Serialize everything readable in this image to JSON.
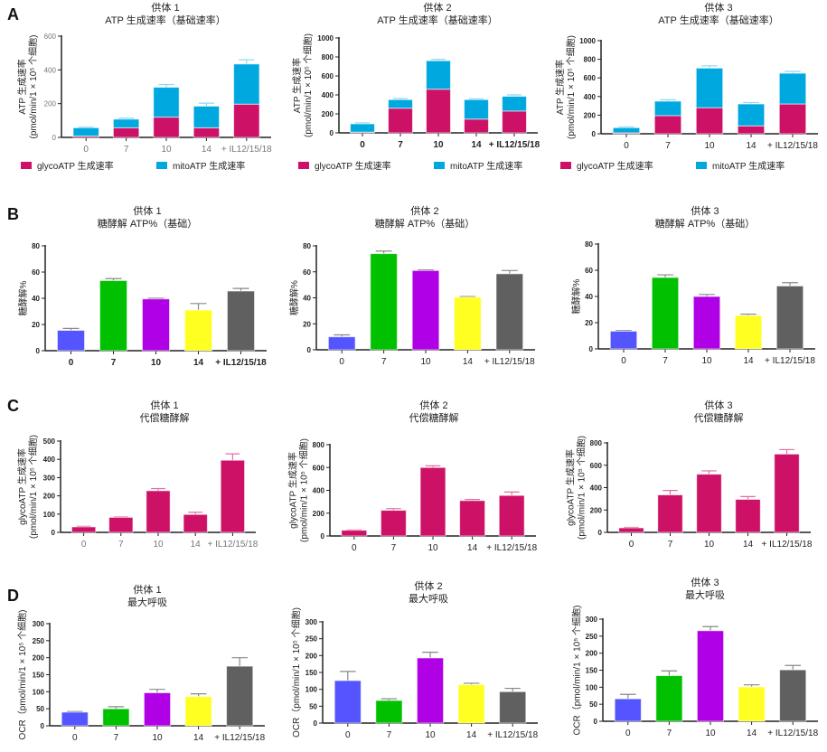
{
  "panels": [
    "A",
    "B",
    "C",
    "D"
  ],
  "colors": {
    "glyco": "#cc1166",
    "mito": "#00a8e0",
    "day0": "#5555ff",
    "day7": "#00c000",
    "day10": "#b000e6",
    "day14": "#ffff22",
    "il": "#606060",
    "axis": "#222222"
  },
  "chart_data": [
    {
      "panel": "A",
      "type": "bar",
      "stacked": true,
      "title": [
        "供体 1",
        "ATP 生成速率（基础速率）"
      ],
      "ylabel": [
        "ATP 生成速率",
        "(pmol/min/1 × 10⁵ 个细胞)"
      ],
      "categories": [
        "0",
        "7",
        "10",
        "14",
        "+ IL12/15/18"
      ],
      "ylim": [
        0,
        600
      ],
      "yticks": [
        0,
        200,
        400,
        600
      ],
      "series": [
        {
          "name": "glycoATP 生成速率",
          "values": [
            8,
            57,
            120,
            57,
            197
          ],
          "errors": [
            3,
            4,
            6,
            15,
            12
          ]
        },
        {
          "name": "mitoATP 生成速率",
          "values": [
            49,
            51,
            177,
            128,
            238
          ],
          "errors": [
            4,
            6,
            16,
            18,
            25
          ]
        }
      ],
      "legend": "bottom"
    },
    {
      "panel": "A",
      "type": "bar",
      "stacked": true,
      "title": [
        "供体 2",
        "ATP 生成速率（基础速率）"
      ],
      "ylabel": [
        "ATP 生成速率",
        "(pmol/min/1 × 10⁵ 个细胞)"
      ],
      "categories": [
        "0",
        "7",
        "10",
        "14",
        "+ IL12/15/18"
      ],
      "ylim": [
        0,
        1000
      ],
      "yticks": [
        0,
        200,
        400,
        600,
        800,
        1000
      ],
      "series": [
        {
          "name": "glycoATP 生成速率",
          "values": [
            8,
            260,
            460,
            145,
            230
          ],
          "errors": [
            3,
            8,
            15,
            5,
            6
          ]
        },
        {
          "name": "mitoATP 生成速率",
          "values": [
            87,
            90,
            300,
            205,
            155
          ],
          "errors": [
            10,
            12,
            15,
            8,
            15
          ]
        }
      ],
      "legend": "bottom"
    },
    {
      "panel": "A",
      "type": "bar",
      "stacked": true,
      "title": [
        "供体 3",
        "ATP 生成速率（基础速率）"
      ],
      "ylabel": [
        "ATP 生成速率",
        "(pmol/min/1 × 10⁵ 个细胞)"
      ],
      "categories": [
        "0",
        "7",
        "10",
        "14",
        "+ IL12/15/18"
      ],
      "ylim": [
        0,
        1000
      ],
      "yticks": [
        0,
        200,
        400,
        600,
        800,
        1000
      ],
      "series": [
        {
          "name": "glycoATP 生成速率",
          "values": [
            10,
            195,
            280,
            85,
            320
          ],
          "errors": [
            3,
            20,
            20,
            6,
            12
          ]
        },
        {
          "name": "mitoATP 生成速率",
          "values": [
            55,
            155,
            425,
            235,
            330
          ],
          "errors": [
            8,
            15,
            25,
            15,
            20
          ]
        }
      ],
      "legend": "bottom"
    },
    {
      "panel": "B",
      "type": "bar",
      "title": [
        "供体 1",
        "糖酵解 ATP%（基础）"
      ],
      "ylabel": [
        "糖酵解%"
      ],
      "categories": [
        "0",
        "7",
        "10",
        "14",
        "+ IL12/15/18"
      ],
      "ylim": [
        0,
        80
      ],
      "yticks": [
        0,
        20,
        40,
        60,
        80
      ],
      "series": [
        {
          "values": [
            15.5,
            53.5,
            39.5,
            31,
            45.5
          ],
          "errors": [
            1.5,
            1.5,
            0.5,
            5,
            2
          ]
        }
      ]
    },
    {
      "panel": "B",
      "type": "bar",
      "title": [
        "供体 2",
        "糖酵解 ATP%（基础）"
      ],
      "ylabel": [
        "糖酵解%"
      ],
      "categories": [
        "0",
        "7",
        "10",
        "14",
        "+ IL12/15/18"
      ],
      "ylim": [
        0,
        80
      ],
      "yticks": [
        0,
        20,
        40,
        60,
        80
      ],
      "series": [
        {
          "values": [
            10,
            74,
            61,
            40.5,
            58.5
          ],
          "errors": [
            1.5,
            2,
            0.5,
            0.5,
            2.5
          ]
        }
      ]
    },
    {
      "panel": "B",
      "type": "bar",
      "title": [
        "供体 3",
        "糖酵解 ATP%（基础）"
      ],
      "ylabel": [
        "糖酵解%"
      ],
      "categories": [
        "0",
        "7",
        "10",
        "14",
        "+ IL12/15/18"
      ],
      "ylim": [
        0,
        80
      ],
      "yticks": [
        0,
        20,
        40,
        60,
        80
      ],
      "series": [
        {
          "values": [
            13.5,
            54.5,
            40,
            25.5,
            48
          ],
          "errors": [
            0.5,
            2,
            1.5,
            1,
            2.5
          ]
        }
      ]
    },
    {
      "panel": "C",
      "type": "bar",
      "title": [
        "供体 1",
        "代偿糖酵解"
      ],
      "ylabel": [
        "glycoATP 生成速率",
        "(pmol/min/1 × 10⁵ 个细胞)"
      ],
      "categories": [
        "0",
        "7",
        "10",
        "14",
        "+ IL12/15/18"
      ],
      "ylim": [
        0,
        500
      ],
      "yticks": [
        0,
        100,
        200,
        300,
        400,
        500
      ],
      "series": [
        {
          "values": [
            30,
            82,
            228,
            98,
            395
          ],
          "errors": [
            3,
            2,
            12,
            12,
            35
          ]
        }
      ]
    },
    {
      "panel": "C",
      "type": "bar",
      "title": [
        "供体 2",
        "代偿糖酵解"
      ],
      "ylabel": [
        "glycoATP 生成速率",
        "(pmol/min/1 × 10⁵ 个细胞)"
      ],
      "categories": [
        "0",
        "7",
        "10",
        "14",
        "+ IL12/15/18"
      ],
      "ylim": [
        0,
        800
      ],
      "yticks": [
        0,
        200,
        400,
        600,
        800
      ],
      "series": [
        {
          "values": [
            50,
            225,
            600,
            310,
            355
          ],
          "errors": [
            3,
            15,
            15,
            10,
            30
          ]
        }
      ]
    },
    {
      "panel": "C",
      "type": "bar",
      "title": [
        "供体 3",
        "代偿糖酵解"
      ],
      "ylabel": [
        "glycoATP 生成速率",
        "(pmol/min/1 × 10⁵ 个细胞)"
      ],
      "categories": [
        "0",
        "7",
        "10",
        "14",
        "+ IL12/15/18"
      ],
      "ylim": [
        0,
        800
      ],
      "yticks": [
        0,
        200,
        400,
        600,
        800
      ],
      "series": [
        {
          "values": [
            40,
            335,
            520,
            295,
            700
          ],
          "errors": [
            5,
            40,
            30,
            25,
            40
          ]
        }
      ]
    },
    {
      "panel": "D",
      "type": "bar",
      "title": [
        "供体 1",
        "最大呼吸"
      ],
      "ylabel": [
        "OCR（pmol/min/1 × 10⁵ 个细胞)"
      ],
      "categories": [
        "0",
        "7",
        "10",
        "14",
        "+ IL12/15/18"
      ],
      "ylim": [
        0,
        300
      ],
      "yticks": [
        0,
        50,
        100,
        150,
        200,
        250,
        300
      ],
      "series": [
        {
          "values": [
            40,
            50,
            97,
            86,
            175
          ],
          "errors": [
            2,
            6,
            10,
            8,
            25
          ]
        }
      ]
    },
    {
      "panel": "D",
      "type": "bar",
      "title": [
        "供体 2",
        "最大呼吸"
      ],
      "ylabel": [
        "OCR（pmol/min/1 × 10⁵ 个细胞)"
      ],
      "categories": [
        "0",
        "7",
        "10",
        "14",
        "+ IL12/15/18"
      ],
      "ylim": [
        0,
        300
      ],
      "yticks": [
        0,
        50,
        100,
        150,
        200,
        250,
        300
      ],
      "series": [
        {
          "values": [
            126,
            67,
            193,
            114,
            93
          ],
          "errors": [
            27,
            5,
            17,
            4,
            10
          ]
        }
      ]
    },
    {
      "panel": "D",
      "type": "bar",
      "title": [
        "供体 3",
        "最大呼吸"
      ],
      "ylabel": [
        "OCR（pmol/min/1 × 10⁵ 个细胞)"
      ],
      "categories": [
        "0",
        "7",
        "10",
        "14",
        "+ IL12/15/18"
      ],
      "ylim": [
        0,
        300
      ],
      "yticks": [
        0,
        50,
        100,
        150,
        200,
        250,
        300
      ],
      "series": [
        {
          "values": [
            66,
            134,
            266,
            101,
            151
          ],
          "errors": [
            13,
            14,
            12,
            6,
            13
          ]
        }
      ]
    }
  ]
}
